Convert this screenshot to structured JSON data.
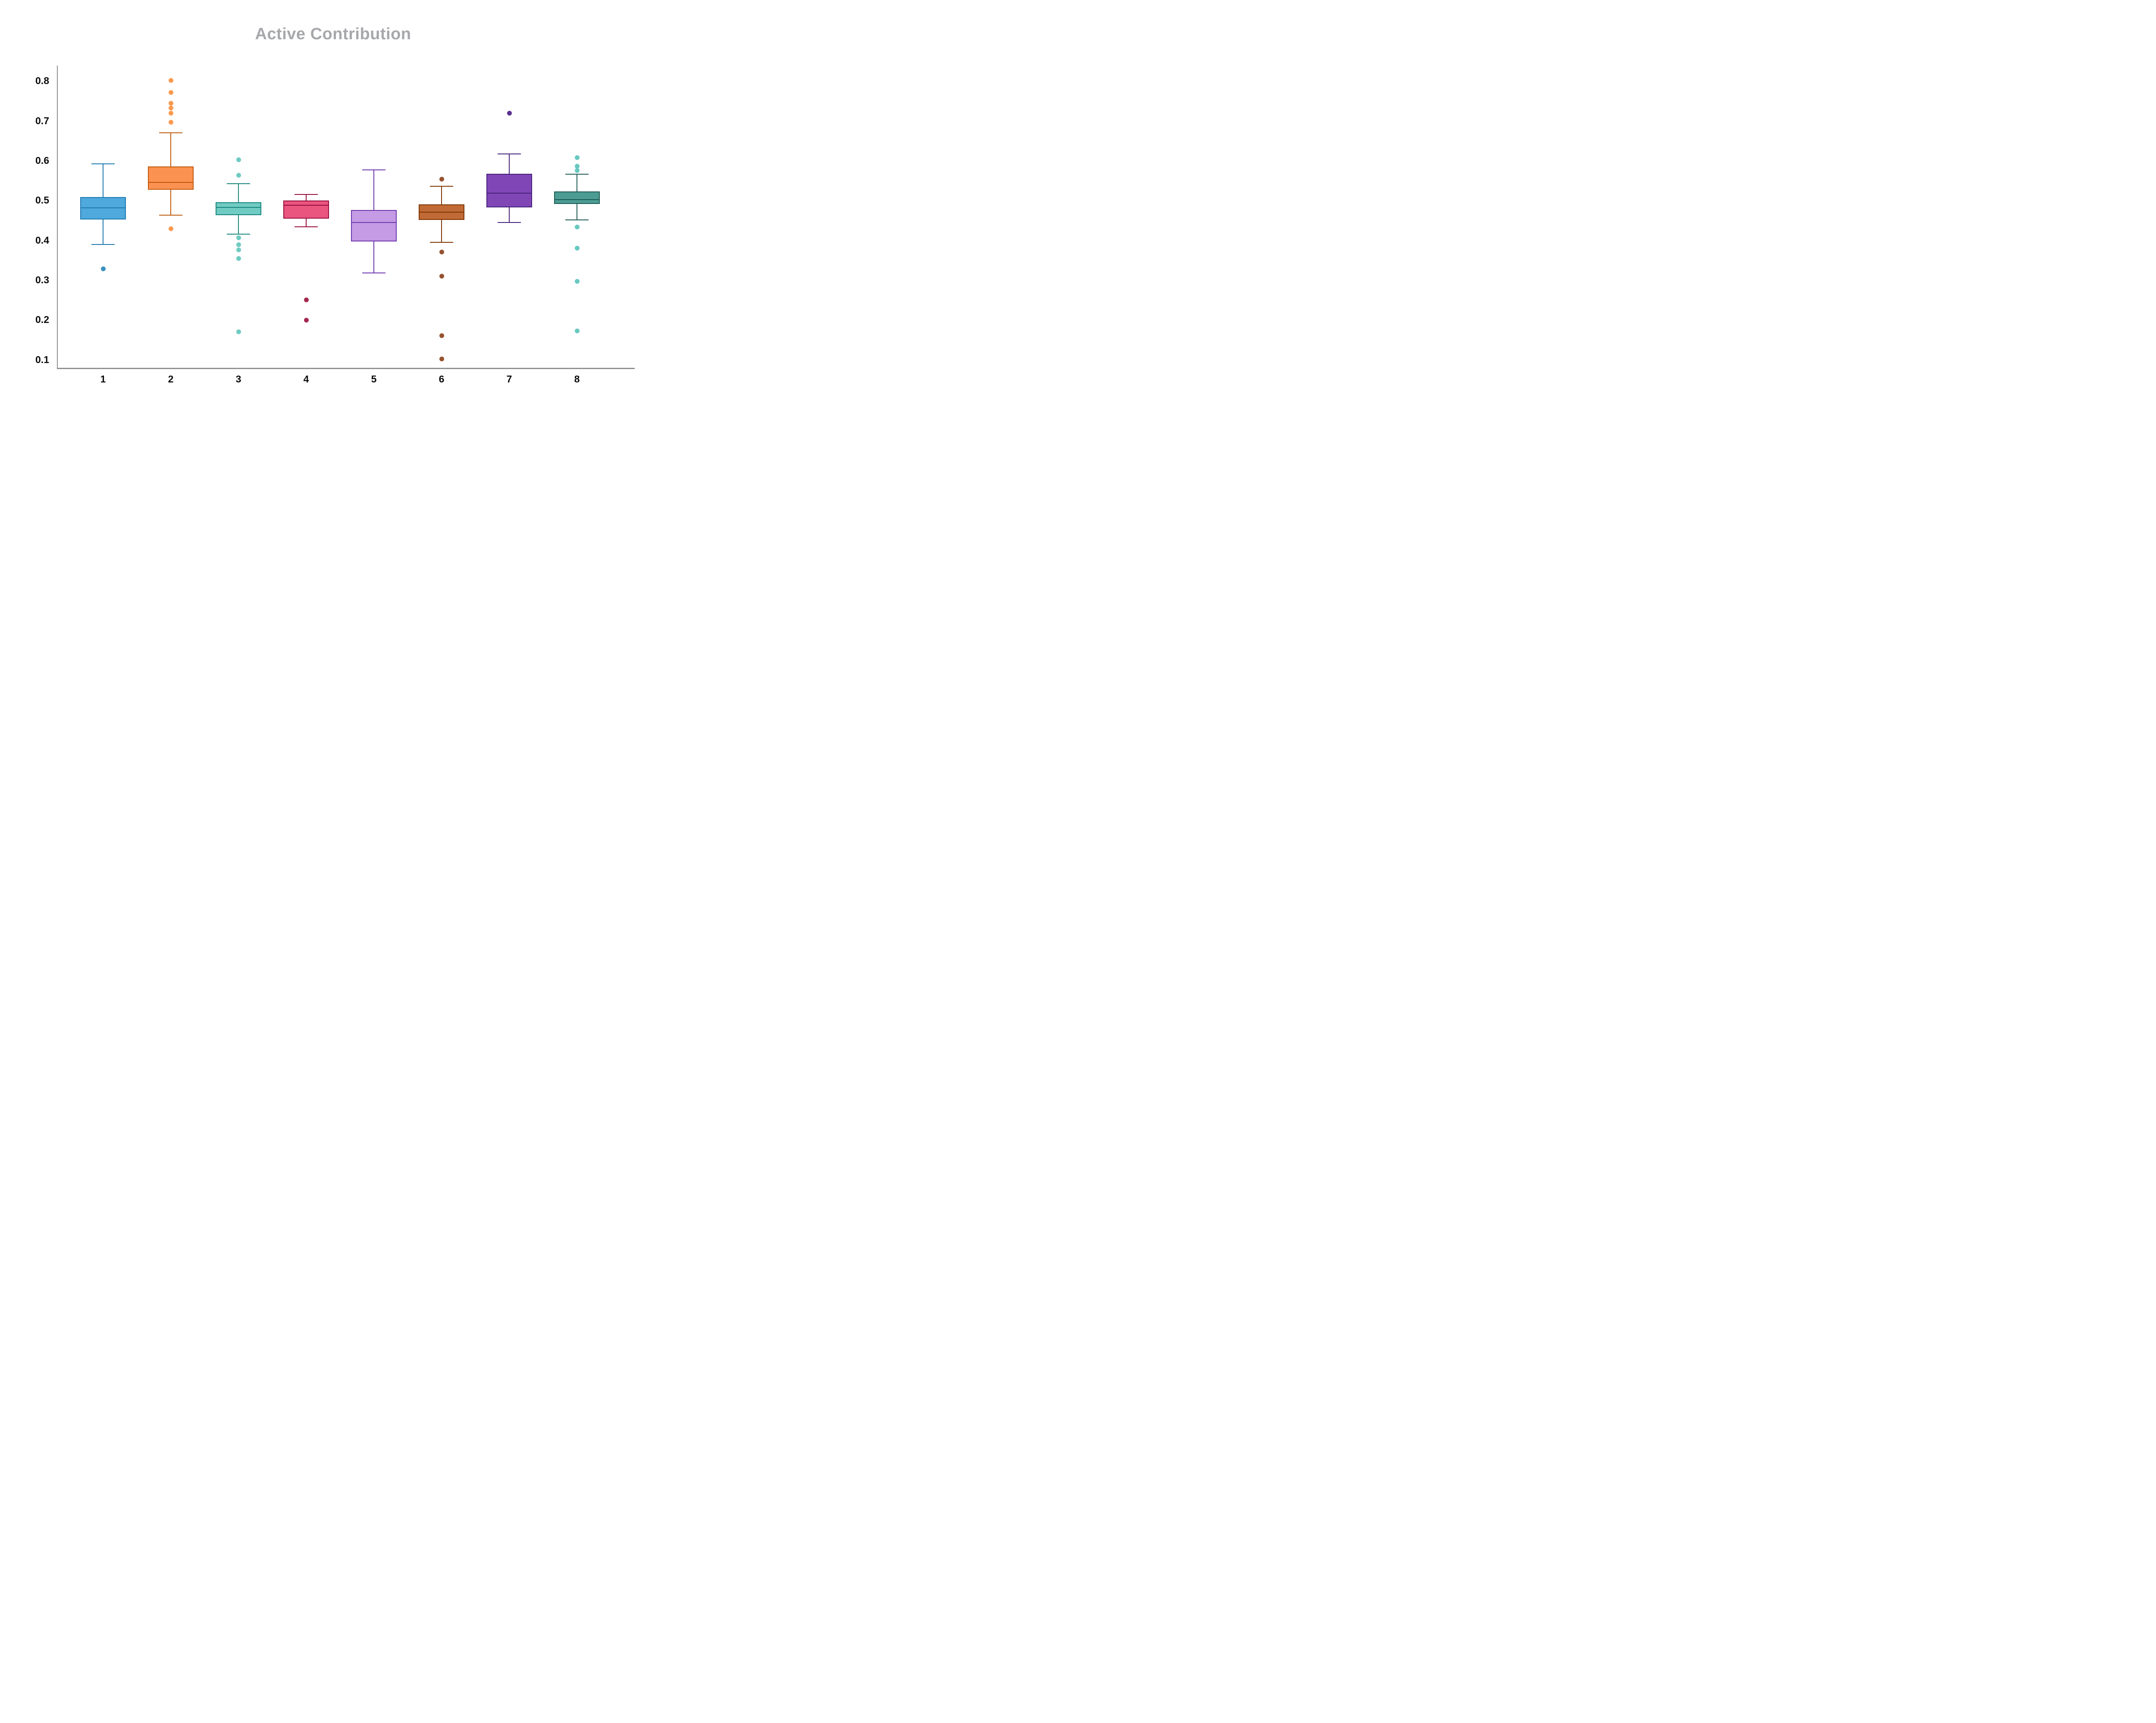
{
  "title": "Active Contribution",
  "style": {
    "title_color": "#a6a8ab",
    "axis_line_color": "#8f9193",
    "tick_label_color": "#0b0b0b",
    "background": "#ffffff"
  },
  "chart_data": {
    "type": "box",
    "title": "Active Contribution",
    "xlabel": "",
    "ylabel": "",
    "grid": false,
    "legend": "none",
    "ylim": [
      0.075,
      0.85
    ],
    "y_tick_values": [
      0.1,
      0.2,
      0.3,
      0.4,
      0.5,
      0.6,
      0.7,
      0.8
    ],
    "y_tick_labels": [
      "0.1",
      "0.2",
      "0.3",
      "0.4",
      "0.5",
      "0.6",
      "0.7",
      "0.8"
    ],
    "categories": [
      "1",
      "2",
      "3",
      "4",
      "5",
      "6",
      "7",
      "8"
    ],
    "series": [
      {
        "category": "1",
        "whisker_low": 0.389,
        "q1": 0.452,
        "median": 0.481,
        "q3": 0.508,
        "whisker_high": 0.591,
        "outliers": [
          0.327
        ],
        "fill": "#4FA9DC",
        "line": "#1B79AF",
        "point_color": "#3892C1"
      },
      {
        "category": "2",
        "whisker_low": 0.462,
        "q1": 0.526,
        "median": 0.545,
        "q3": 0.585,
        "whisker_high": 0.669,
        "outliers": [
          0.801,
          0.771,
          0.743,
          0.731,
          0.719,
          0.696,
          0.428
        ],
        "fill": "#FB9251",
        "line": "#C05A0A",
        "point_color": "#FB9A4F"
      },
      {
        "category": "3",
        "whisker_low": 0.415,
        "q1": 0.462,
        "median": 0.482,
        "q3": 0.495,
        "whisker_high": 0.541,
        "outliers": [
          0.602,
          0.563,
          0.406,
          0.388,
          0.375,
          0.354,
          0.169
        ],
        "fill": "#70CBC2",
        "line": "#17857D",
        "point_color": "#6FCBC2"
      },
      {
        "category": "4",
        "whisker_low": 0.433,
        "q1": 0.454,
        "median": 0.487,
        "q3": 0.499,
        "whisker_high": 0.514,
        "outliers": [
          0.249,
          0.199
        ],
        "fill": "#E9557F",
        "line": "#970B3B",
        "point_color": "#A5294F"
      },
      {
        "category": "5",
        "whisker_low": 0.317,
        "q1": 0.396,
        "median": 0.444,
        "q3": 0.475,
        "whisker_high": 0.576,
        "outliers": [],
        "fill": "#C49BE4",
        "line": "#6C35AE",
        "point_color": "#6C35AE"
      },
      {
        "category": "6",
        "whisker_low": 0.394,
        "q1": 0.45,
        "median": 0.47,
        "q3": 0.489,
        "whisker_high": 0.535,
        "outliers": [
          0.553,
          0.37,
          0.309,
          0.16,
          0.101
        ],
        "fill": "#C06A35",
        "line": "#7E3402",
        "point_color": "#96522F"
      },
      {
        "category": "7",
        "whisker_low": 0.444,
        "q1": 0.482,
        "median": 0.518,
        "q3": 0.566,
        "whisker_high": 0.616,
        "outliers": [
          0.718
        ],
        "fill": "#8046B6",
        "line": "#45207A",
        "point_color": "#5B3090"
      },
      {
        "category": "8",
        "whisker_low": 0.45,
        "q1": 0.49,
        "median": 0.501,
        "q3": 0.522,
        "whisker_high": 0.565,
        "outliers": [
          0.607,
          0.585,
          0.574,
          0.432,
          0.38,
          0.296,
          0.172
        ],
        "fill": "#4C9C93",
        "line": "#1C5A53",
        "point_color": "#67C9C0"
      }
    ]
  }
}
